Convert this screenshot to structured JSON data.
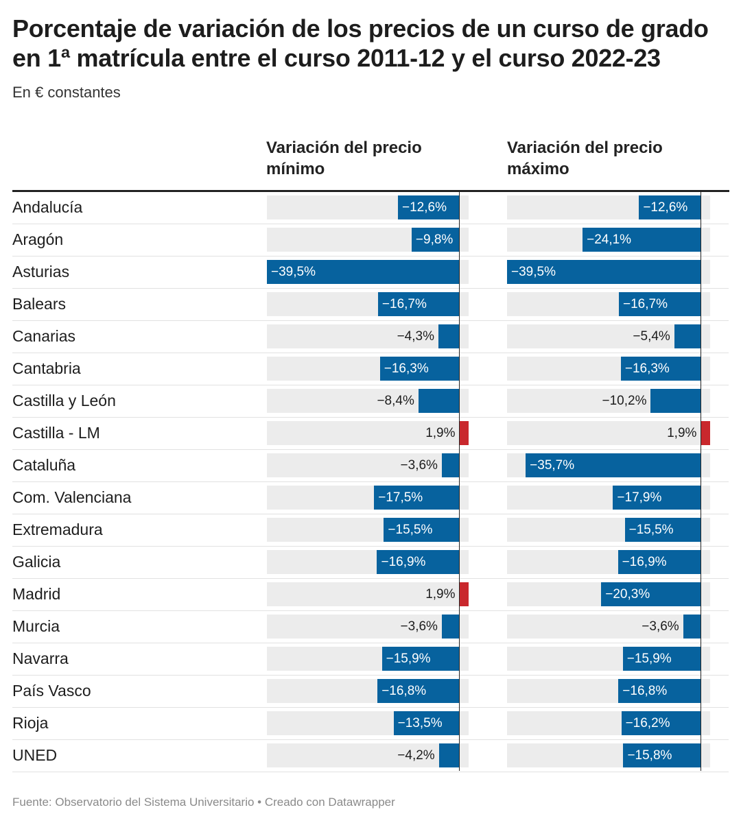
{
  "header": {
    "title": "Porcentaje de variación de los precios de un curso de grado en 1ª matrícula entre el curso 2011-12 y el curso 2022-23",
    "subtitle": "En € constantes"
  },
  "columns": {
    "min_heading": "Variación del precio mínimo",
    "max_heading": "Variación del precio máximo"
  },
  "colors": {
    "negative": "#07629e",
    "positive": "#c9282d",
    "background": "#ececec"
  },
  "chart_data": {
    "type": "bar",
    "orientation": "horizontal",
    "layout": "two-panel table",
    "categories": [
      "Andalucía",
      "Aragón",
      "Asturias",
      "Balears",
      "Canarias",
      "Cantabria",
      "Castilla y León",
      "Castilla - LM",
      "Cataluña",
      "Com. Valenciana",
      "Extremadura",
      "Galicia",
      "Madrid",
      "Murcia",
      "Navarra",
      "País Vasco",
      "Rioja",
      "UNED"
    ],
    "series": [
      {
        "name": "Variación del precio mínimo",
        "values": [
          -12.6,
          -9.8,
          -39.5,
          -16.7,
          -4.3,
          -16.3,
          -8.4,
          1.9,
          -3.6,
          -17.5,
          -15.5,
          -16.9,
          1.9,
          -3.6,
          -15.9,
          -16.8,
          -13.5,
          -4.2
        ],
        "labels": [
          "−12,6%",
          "−9,8%",
          "−39,5%",
          "−16,7%",
          "−4,3%",
          "−16,3%",
          "−8,4%",
          "1,9%",
          "−3,6%",
          "−17,5%",
          "−15,5%",
          "−16,9%",
          "1,9%",
          "−3,6%",
          "−15,9%",
          "−16,8%",
          "−13,5%",
          "−4,2%"
        ]
      },
      {
        "name": "Variación del precio máximo",
        "values": [
          -12.6,
          -24.1,
          -39.5,
          -16.7,
          -5.4,
          -16.3,
          -10.2,
          1.9,
          -35.7,
          -17.9,
          -15.5,
          -16.9,
          -20.3,
          -3.6,
          -15.9,
          -16.8,
          -16.2,
          -15.8
        ],
        "labels": [
          "−12,6%",
          "−24,1%",
          "−39,5%",
          "−16,7%",
          "−5,4%",
          "−16,3%",
          "−10,2%",
          "1,9%",
          "−35,7%",
          "−17,9%",
          "−15,5%",
          "−16,9%",
          "−20,3%",
          "−3,6%",
          "−15,9%",
          "−16,8%",
          "−16,2%",
          "−15,8%"
        ]
      }
    ],
    "xlim": [
      -39.5,
      1.9
    ]
  },
  "footer": {
    "source": "Fuente: Observatorio del Sistema Universitario • Creado con Datawrapper"
  }
}
